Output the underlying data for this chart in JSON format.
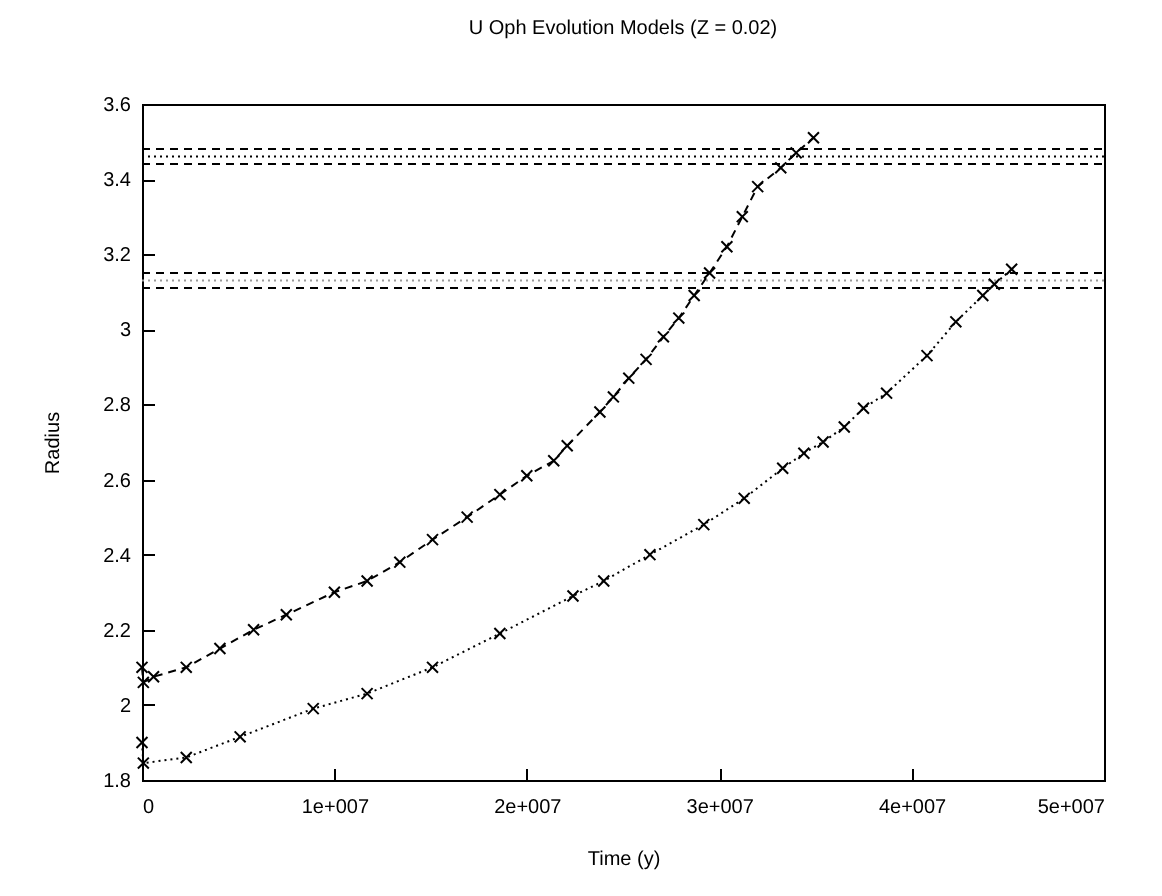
{
  "chart_data": {
    "type": "line",
    "title": "U Oph Evolution Models  (Z = 0.02)",
    "xlabel": "Time (y)",
    "ylabel": "Radius",
    "xlim": [
      0,
      50000000
    ],
    "ylim": [
      1.8,
      3.6
    ],
    "xticks": [
      {
        "value": 0,
        "label": "0"
      },
      {
        "value": 10000000,
        "label": "1e+007"
      },
      {
        "value": 20000000,
        "label": "2e+007"
      },
      {
        "value": 30000000,
        "label": "3e+007"
      },
      {
        "value": 40000000,
        "label": "4e+007"
      },
      {
        "value": 50000000,
        "label": "5e+007"
      }
    ],
    "yticks": [
      1.8,
      2,
      2.2,
      2.4,
      2.6,
      2.8,
      3,
      3.2,
      3.4,
      3.6
    ],
    "grid": false,
    "marker": "cross",
    "series": [
      {
        "color": "#000000",
        "line_style": "dashed",
        "x": [
          0,
          70000,
          600000,
          2300000,
          4050000,
          5800000,
          7500000,
          10000000,
          11700000,
          13400000,
          15100000,
          16900000,
          18600000,
          20000000,
          21400000,
          22100000,
          23800000,
          24500000,
          25300000,
          26200000,
          27100000,
          27900000,
          28700000,
          29500000,
          30400000,
          31200000,
          32000000,
          33200000,
          34000000,
          34900000
        ],
        "values": [
          2.1,
          2.06,
          2.075,
          2.1,
          2.15,
          2.2,
          2.24,
          2.3,
          2.33,
          2.38,
          2.44,
          2.5,
          2.56,
          2.61,
          2.65,
          2.69,
          2.78,
          2.82,
          2.87,
          2.92,
          2.98,
          3.03,
          3.09,
          3.15,
          3.22,
          3.3,
          3.38,
          3.43,
          3.47,
          3.51
        ]
      },
      {
        "color": "#000000",
        "line_style": "dotted",
        "x": [
          0,
          70000,
          2300000,
          5100000,
          8900000,
          11700000,
          15100000,
          18600000,
          22400000,
          24000000,
          26400000,
          29200000,
          31300000,
          33300000,
          34400000,
          35400000,
          36500000,
          37500000,
          38700000,
          40800000,
          42300000,
          43700000,
          44300000,
          45200000
        ],
        "values": [
          1.9,
          1.845,
          1.86,
          1.915,
          1.99,
          2.03,
          2.1,
          2.19,
          2.29,
          2.33,
          2.4,
          2.48,
          2.55,
          2.63,
          2.67,
          2.7,
          2.74,
          2.79,
          2.83,
          2.93,
          3.02,
          3.09,
          3.12,
          3.16
        ]
      }
    ],
    "ref_lines": [
      {
        "axis": "y",
        "value": 3.48,
        "color": "#000000",
        "line_style": "dashed"
      },
      {
        "axis": "y",
        "value": 3.46,
        "color": "#000000",
        "line_style": "dotted"
      },
      {
        "axis": "y",
        "value": 3.44,
        "color": "#000000",
        "line_style": "dashed"
      },
      {
        "axis": "y",
        "value": 3.15,
        "color": "#000000",
        "line_style": "dashed"
      },
      {
        "axis": "y",
        "value": 3.13,
        "color": "#999999",
        "line_style": "dotted"
      },
      {
        "axis": "y",
        "value": 3.11,
        "color": "#000000",
        "line_style": "dashed"
      }
    ]
  }
}
